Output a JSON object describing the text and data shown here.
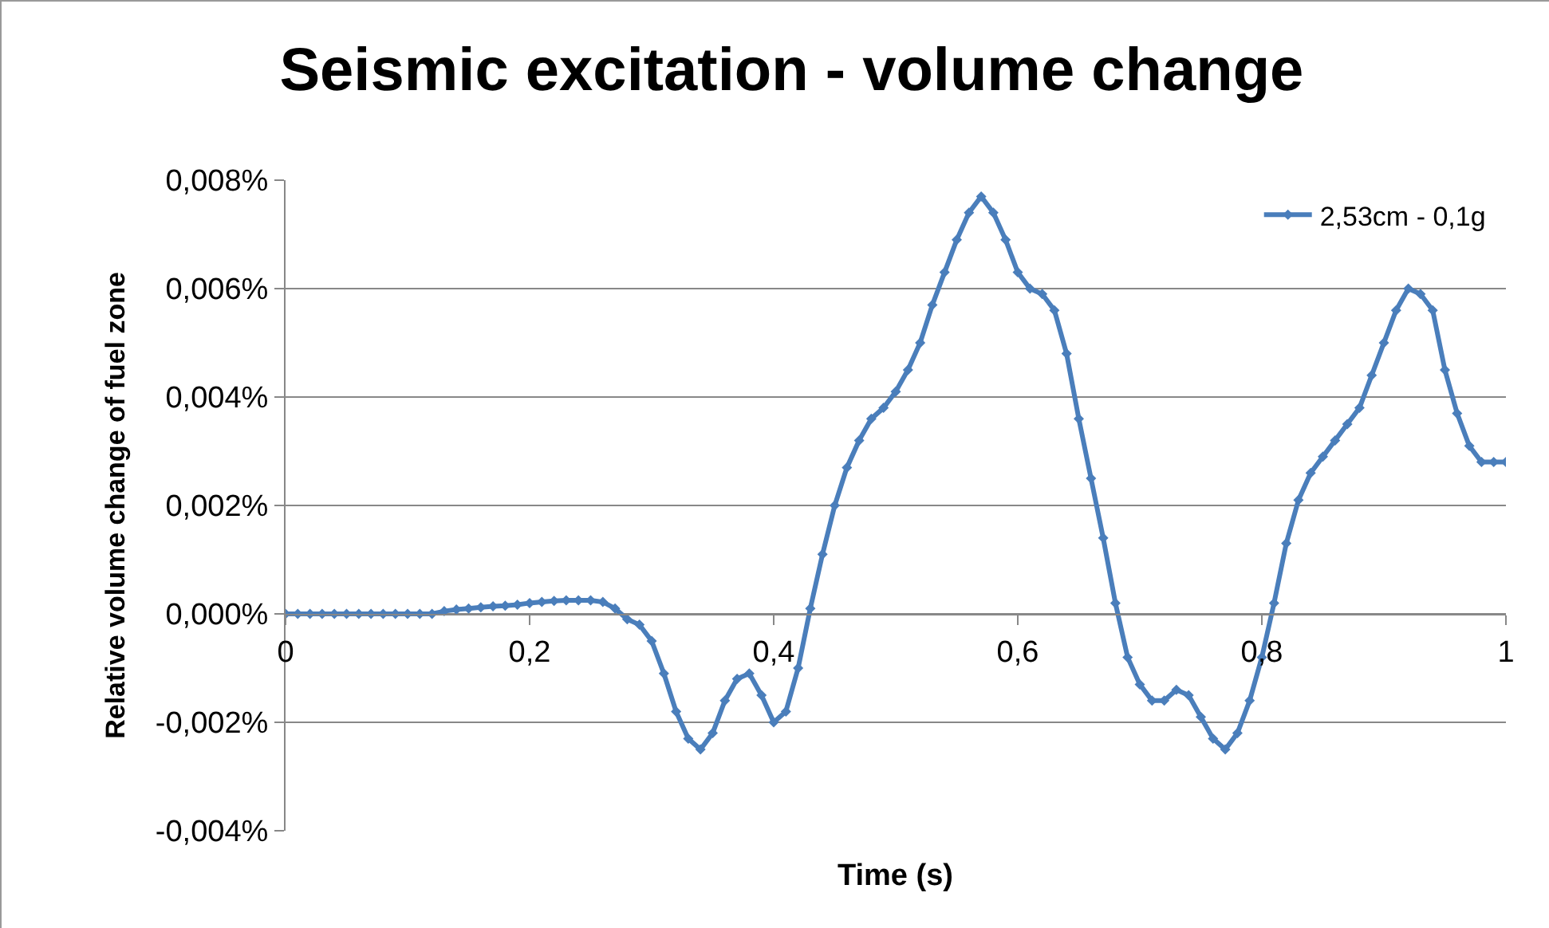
{
  "chart_data": {
    "type": "line",
    "title": "Seismic excitation - volume change",
    "xlabel": "Time (s)",
    "ylabel": "Relative volume change of fuel zone",
    "x": [
      0,
      0.01,
      0.02,
      0.03,
      0.04,
      0.05,
      0.06,
      0.07,
      0.08,
      0.09,
      0.1,
      0.11,
      0.12,
      0.13,
      0.14,
      0.15,
      0.16,
      0.17,
      0.18,
      0.19,
      0.2,
      0.21,
      0.22,
      0.23,
      0.24,
      0.25,
      0.26,
      0.27,
      0.28,
      0.29,
      0.3,
      0.31,
      0.32,
      0.33,
      0.34,
      0.35,
      0.36,
      0.37,
      0.38,
      0.39,
      0.4,
      0.41,
      0.42,
      0.43,
      0.44,
      0.45,
      0.46,
      0.47,
      0.48,
      0.49,
      0.5,
      0.51,
      0.52,
      0.53,
      0.54,
      0.55,
      0.56,
      0.57,
      0.58,
      0.59,
      0.6,
      0.61,
      0.62,
      0.63,
      0.64,
      0.65,
      0.66,
      0.67,
      0.68,
      0.69,
      0.7,
      0.71,
      0.72,
      0.73,
      0.74,
      0.75,
      0.76,
      0.77,
      0.78,
      0.79,
      0.8,
      0.81,
      0.82,
      0.83,
      0.84,
      0.85,
      0.86,
      0.87,
      0.88,
      0.89,
      0.9,
      0.91,
      0.92,
      0.93,
      0.94,
      0.95,
      0.96,
      0.97,
      0.98,
      0.99,
      1.0
    ],
    "series": [
      {
        "name": "2,53cm - 0,1g",
        "color": "#4a7ebb",
        "values": [
          0,
          0,
          0,
          0,
          0,
          0,
          0,
          0,
          0,
          0,
          0,
          0,
          0,
          5e-05,
          8e-05,
          0.0001,
          0.00012,
          0.00014,
          0.00015,
          0.00017,
          0.0002,
          0.00022,
          0.00024,
          0.00025,
          0.00025,
          0.00025,
          0.00022,
          0.0001,
          -0.0001,
          -0.0002,
          -0.0005,
          -0.0011,
          -0.0018,
          -0.0023,
          -0.0025,
          -0.0022,
          -0.0016,
          -0.0012,
          -0.0011,
          -0.0015,
          -0.002,
          -0.0018,
          -0.001,
          0.0001,
          0.0011,
          0.002,
          0.0027,
          0.0032,
          0.0036,
          0.0038,
          0.0041,
          0.0045,
          0.005,
          0.0057,
          0.0063,
          0.0069,
          0.0074,
          0.0077,
          0.0074,
          0.0069,
          0.0063,
          0.006,
          0.0059,
          0.0056,
          0.0048,
          0.0036,
          0.0025,
          0.0014,
          0.0002,
          -0.0008,
          -0.0013,
          -0.0016,
          -0.0016,
          -0.0014,
          -0.0015,
          -0.0019,
          -0.0023,
          -0.0025,
          -0.0022,
          -0.0016,
          -0.0008,
          0.0002,
          0.0013,
          0.0021,
          0.0026,
          0.0029,
          0.0032,
          0.0035,
          0.0038,
          0.0044,
          0.005,
          0.0056,
          0.006,
          0.0059,
          0.0056,
          0.0045,
          0.0037,
          0.0031,
          0.0028,
          0.0028,
          0.0028
        ]
      }
    ],
    "xlim": [
      0,
      1
    ],
    "xticks": [
      0,
      {
        "value": 0.2,
        "label": "0,2"
      },
      {
        "value": 0.4,
        "label": "0,4"
      },
      {
        "value": 0.6,
        "label": "0,6"
      },
      {
        "value": 0.8,
        "label": "0,8"
      },
      1
    ],
    "ylim": [
      -0.004,
      0.008
    ],
    "yticks": [
      {
        "value": -0.004,
        "label": "-0,004%"
      },
      {
        "value": -0.002,
        "label": "-0,002%"
      },
      {
        "value": 0,
        "label": "0,000%"
      },
      {
        "value": 0.002,
        "label": "0,002%"
      },
      {
        "value": 0.004,
        "label": "0,004%"
      },
      {
        "value": 0.006,
        "label": "0,006%"
      },
      {
        "value": 0.008,
        "label": "0,008%"
      }
    ],
    "grid": "y",
    "legend": "top right",
    "marker": "diamond",
    "line_style": "solid"
  }
}
